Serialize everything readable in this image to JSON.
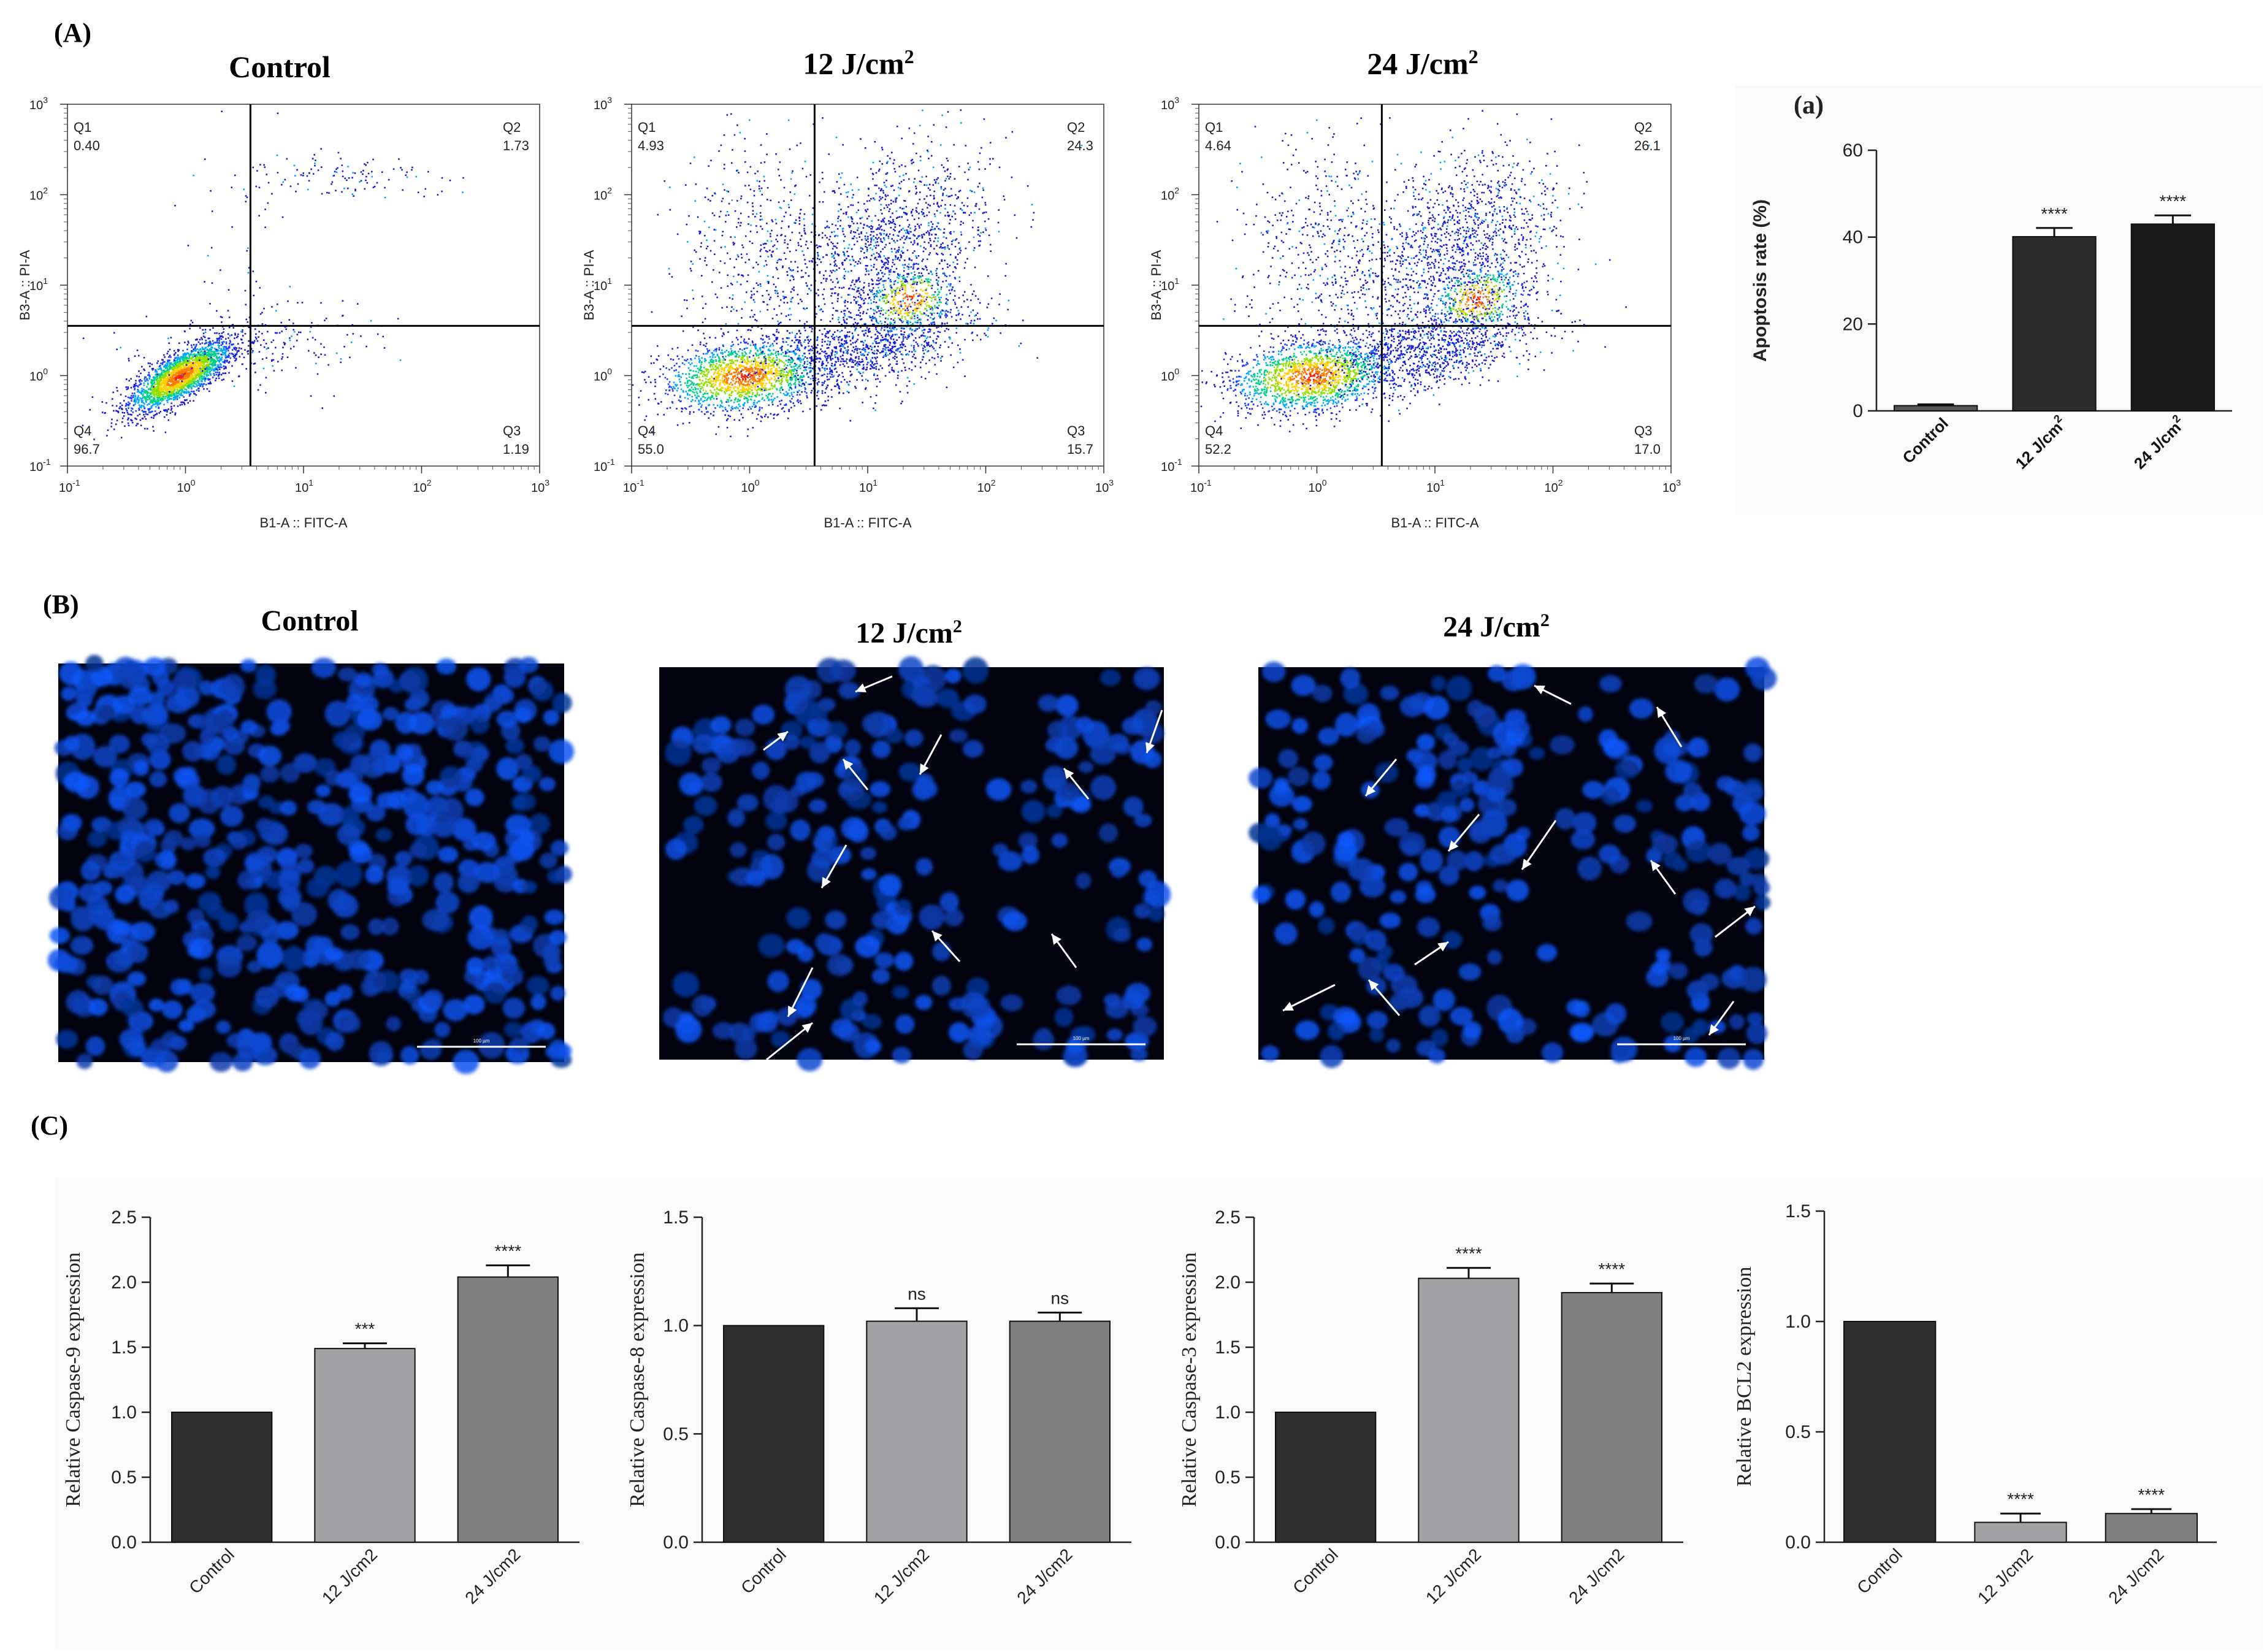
{
  "panels": {
    "A": "(A)",
    "B": "(B)",
    "C": "(C)",
    "a": "(a)"
  },
  "flow": {
    "x_axis_label": "B1-A :: FITC-A",
    "y_axis_label": "B3-A :: PI-A",
    "decade_ticks": [
      "10",
      "10",
      "10",
      "10",
      "10"
    ],
    "decade_exponents": [
      "-1",
      "0",
      "1",
      "2",
      "3"
    ],
    "quadrant_labels": [
      "Q1",
      "Q2",
      "Q3",
      "Q4"
    ],
    "plots": [
      {
        "title": "Control",
        "q1": "0.40",
        "q2": "1.73",
        "q3": "1.19",
        "q4": "96.7"
      },
      {
        "title": "12 J/cm",
        "q1": "4.93",
        "q2": "24.3",
        "q3": "15.7",
        "q4": "55.0"
      },
      {
        "title": "24 J/cm",
        "q1": "4.64",
        "q2": "26.1",
        "q3": "17.0",
        "q4": "52.2"
      }
    ],
    "title_superscript": "2"
  },
  "micro": {
    "titles": [
      "Control",
      "12 J/cm",
      "24 J/cm"
    ],
    "title_superscript": "2",
    "scale_bar_label": "100 µm"
  },
  "chart_data": [
    {
      "id": "apoptosis",
      "type": "bar",
      "title": "(a)",
      "ylabel": "Apoptosis rate (%)",
      "ylim": [
        0,
        60
      ],
      "yticks": [
        0,
        20,
        40,
        60
      ],
      "ytick_labels": [
        "0",
        "20",
        "40",
        "60"
      ],
      "categories": [
        "Control",
        "12 J/cm",
        "24 J/cm"
      ],
      "category_superscript": "2",
      "values": [
        1.2,
        40.1,
        43.0
      ],
      "errors": [
        0.3,
        2.0,
        2.0
      ],
      "significance": [
        "",
        "****",
        "****"
      ],
      "colors": [
        "#555555",
        "#2b2b2b",
        "#1a1a1a"
      ]
    },
    {
      "id": "caspase9",
      "type": "bar",
      "ylabel": "Relative Caspase-9 expression",
      "ylim": [
        0,
        2.5
      ],
      "yticks": [
        0,
        0.5,
        1.0,
        1.5,
        2.0,
        2.5
      ],
      "ytick_labels": [
        "0.0",
        "0.5",
        "1.0",
        "1.5",
        "2.0",
        "2.5"
      ],
      "categories": [
        "Control",
        "12 J/cm2",
        "24 J/cm2"
      ],
      "values": [
        1.0,
        1.49,
        2.04
      ],
      "errors": [
        0.0,
        0.04,
        0.09
      ],
      "significance": [
        "",
        "***",
        "****"
      ],
      "colors": [
        "#2f2f2f",
        "#a2a2a4",
        "#7f7f7f"
      ]
    },
    {
      "id": "caspase8",
      "type": "bar",
      "ylabel": "Relative Caspase-8 expression",
      "ylim": [
        0,
        1.5
      ],
      "yticks": [
        0,
        0.5,
        1.0,
        1.5
      ],
      "ytick_labels": [
        "0.0",
        "0.5",
        "1.0",
        "1.5"
      ],
      "categories": [
        "Control",
        "12 J/cm2",
        "24 J/cm2"
      ],
      "values": [
        1.0,
        1.02,
        1.02
      ],
      "errors": [
        0.0,
        0.06,
        0.04
      ],
      "significance": [
        "",
        "ns",
        "ns"
      ],
      "colors": [
        "#2f2f2f",
        "#a2a2a4",
        "#7f7f7f"
      ]
    },
    {
      "id": "caspase3",
      "type": "bar",
      "ylabel": "Relative Caspase-3 expression",
      "ylim": [
        0,
        2.5
      ],
      "yticks": [
        0,
        0.5,
        1.0,
        1.5,
        2.0,
        2.5
      ],
      "ytick_labels": [
        "0.0",
        "0.5",
        "1.0",
        "1.5",
        "2.0",
        "2.5"
      ],
      "categories": [
        "Control",
        "12 J/cm2",
        "24 J/cm2"
      ],
      "values": [
        1.0,
        2.03,
        1.92
      ],
      "errors": [
        0.0,
        0.08,
        0.07
      ],
      "significance": [
        "",
        "****",
        "****"
      ],
      "colors": [
        "#2f2f2f",
        "#a2a2a4",
        "#7f7f7f"
      ]
    },
    {
      "id": "bcl2",
      "type": "bar",
      "ylabel": "Relative BCL2 expression",
      "ylim": [
        0,
        1.5
      ],
      "yticks": [
        0,
        0.5,
        1.0,
        1.5
      ],
      "ytick_labels": [
        "0.0",
        "0.5",
        "1.0",
        "1.5"
      ],
      "categories": [
        "Control",
        "12 J/cm2",
        "24 J/cm2"
      ],
      "values": [
        1.0,
        0.09,
        0.13
      ],
      "errors": [
        0.0,
        0.04,
        0.02
      ],
      "significance": [
        "",
        "****",
        "****"
      ],
      "colors": [
        "#2f2f2f",
        "#a2a2a4",
        "#7f7f7f"
      ]
    }
  ]
}
